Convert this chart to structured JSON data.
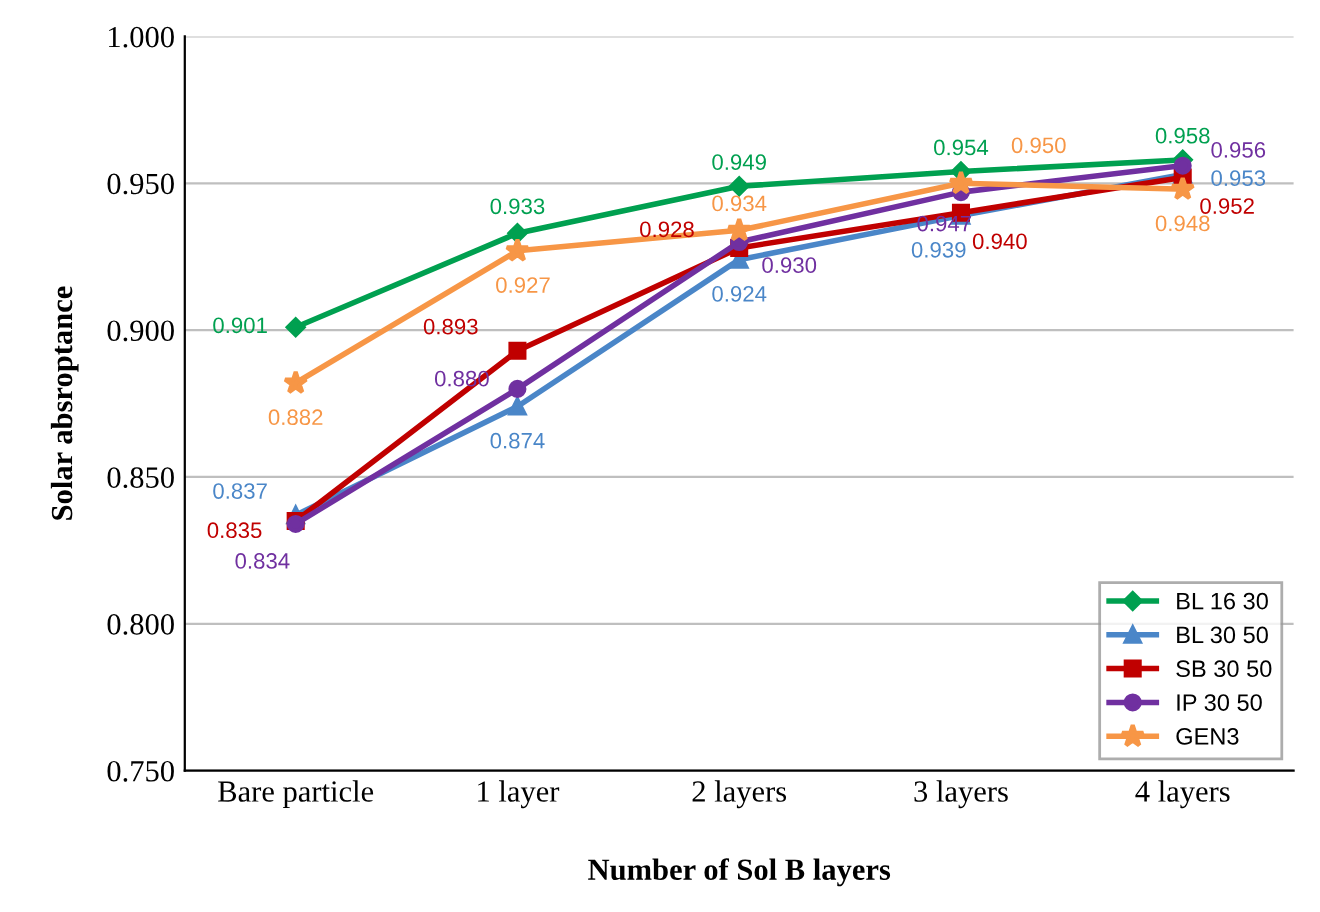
{
  "chart_data": {
    "type": "line",
    "xlabel": "Number of Sol B layers",
    "ylabel": "Solar absroptance",
    "categories": [
      "Bare particle",
      "1 layer",
      "2 layers",
      "3 layers",
      "4 layers"
    ],
    "series": [
      {
        "name": "BL 16 30",
        "color": "#00a050",
        "marker": "diamond",
        "values": [
          0.901,
          0.933,
          0.949,
          0.954,
          0.958
        ],
        "value_labels": [
          "0.901",
          "0.933",
          "0.949",
          "0.954",
          "0.958"
        ]
      },
      {
        "name": "BL 30 50",
        "color": "#4a86c8",
        "marker": "triangle",
        "values": [
          0.837,
          0.874,
          0.924,
          0.939,
          0.953
        ],
        "value_labels": [
          "0.837",
          "0.874",
          "0.924",
          "0.939",
          "0.953"
        ]
      },
      {
        "name": "SB 30 50",
        "color": "#c00000",
        "marker": "square",
        "values": [
          0.835,
          0.893,
          0.928,
          0.94,
          0.952
        ],
        "value_labels": [
          "0.835",
          "0.893",
          "0.928",
          "0.940",
          "0.952"
        ]
      },
      {
        "name": "IP 30 50",
        "color": "#7030a0",
        "marker": "circle",
        "values": [
          0.834,
          0.88,
          0.93,
          0.947,
          0.956
        ],
        "value_labels": [
          "0.834",
          "0.880",
          "0.930",
          "0.947",
          "0.956"
        ]
      },
      {
        "name": "GEN3",
        "color": "#f79646",
        "marker": "star",
        "values": [
          0.882,
          0.927,
          0.934,
          0.95,
          0.948
        ],
        "value_labels": [
          "0.882",
          "0.927",
          "0.934",
          "0.950",
          "0.948"
        ]
      }
    ],
    "ylim": [
      0.75,
      1.0
    ],
    "yticks": [
      {
        "value": 0.75,
        "label": "0.750"
      },
      {
        "value": 0.8,
        "label": "0.800"
      },
      {
        "value": 0.85,
        "label": "0.850"
      },
      {
        "value": 0.9,
        "label": "0.900"
      },
      {
        "value": 0.95,
        "label": "0.950"
      },
      {
        "value": 1.0,
        "label": "1.000"
      }
    ],
    "grid": "y",
    "legend": "bottom right"
  }
}
